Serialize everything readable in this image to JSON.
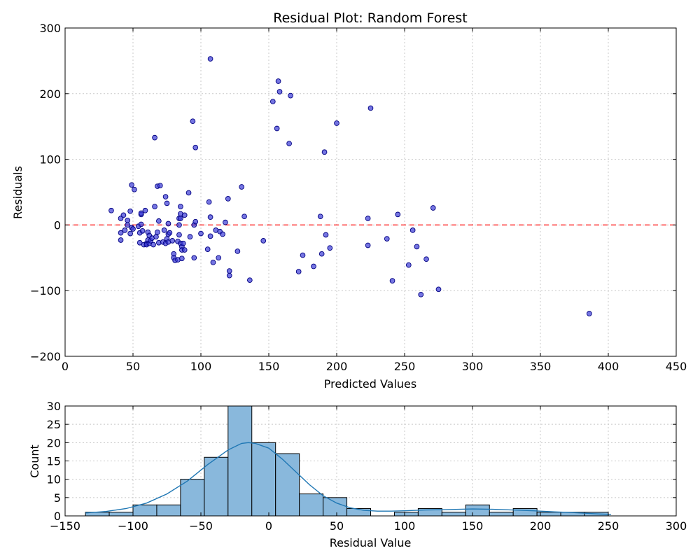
{
  "chart_data": [
    {
      "type": "scatter",
      "title": "Residual Plot: Random Forest",
      "xlabel": "Predicted Values",
      "ylabel": "Residuals",
      "xlim": [
        0,
        450
      ],
      "ylim": [
        -200,
        300
      ],
      "xticks": [
        0,
        50,
        100,
        150,
        200,
        250,
        300,
        350,
        400,
        450
      ],
      "yticks": [
        -200,
        -100,
        0,
        100,
        200,
        300
      ],
      "grid": true,
      "point_color": "#3b3bd6",
      "point_edge_color": "#000080",
      "reference_line": {
        "y": 0,
        "color": "#ff0000",
        "style": "dashed"
      },
      "points": [
        [
          34,
          22
        ],
        [
          41,
          10
        ],
        [
          41,
          -12
        ],
        [
          41,
          -23
        ],
        [
          43,
          15
        ],
        [
          44,
          -8
        ],
        [
          46,
          7
        ],
        [
          46,
          0
        ],
        [
          48,
          21
        ],
        [
          49,
          -4
        ],
        [
          48,
          -13
        ],
        [
          49,
          61
        ],
        [
          50,
          -6
        ],
        [
          51,
          54
        ],
        [
          54,
          -2
        ],
        [
          55,
          -12
        ],
        [
          55,
          -27
        ],
        [
          56,
          1
        ],
        [
          56,
          16
        ],
        [
          56,
          18
        ],
        [
          57,
          -9
        ],
        [
          58,
          -30
        ],
        [
          59,
          22
        ],
        [
          60,
          -28
        ],
        [
          60,
          -30
        ],
        [
          61,
          -11
        ],
        [
          61,
          -23
        ],
        [
          62,
          -16
        ],
        [
          62,
          -28
        ],
        [
          63,
          -24
        ],
        [
          64,
          -20
        ],
        [
          65,
          -30
        ],
        [
          66,
          133
        ],
        [
          66,
          28
        ],
        [
          67,
          -18
        ],
        [
          68,
          -11
        ],
        [
          68,
          59
        ],
        [
          69,
          -27
        ],
        [
          69,
          6
        ],
        [
          70,
          60
        ],
        [
          72,
          -26
        ],
        [
          73,
          -8
        ],
        [
          74,
          -28
        ],
        [
          74,
          43
        ],
        [
          75,
          -21
        ],
        [
          75,
          33
        ],
        [
          76,
          -14
        ],
        [
          76,
          -26
        ],
        [
          76,
          2
        ],
        [
          77,
          -12
        ],
        [
          79,
          -24
        ],
        [
          80,
          -44
        ],
        [
          80,
          -50
        ],
        [
          81,
          -54
        ],
        [
          83,
          -53
        ],
        [
          83,
          -25
        ],
        [
          84,
          0
        ],
        [
          84,
          -15
        ],
        [
          84,
          10
        ],
        [
          85,
          17
        ],
        [
          85,
          28
        ],
        [
          85,
          10
        ],
        [
          85,
          -28
        ],
        [
          86,
          -33
        ],
        [
          86,
          -38
        ],
        [
          86,
          -51
        ],
        [
          87,
          -28
        ],
        [
          88,
          -38
        ],
        [
          88,
          15
        ],
        [
          91,
          49
        ],
        [
          92,
          -18
        ],
        [
          94,
          158
        ],
        [
          95,
          -50
        ],
        [
          95,
          0
        ],
        [
          96,
          5
        ],
        [
          96,
          118
        ],
        [
          100,
          -13
        ],
        [
          105,
          -37
        ],
        [
          106,
          35
        ],
        [
          107,
          -17
        ],
        [
          107,
          12
        ],
        [
          107,
          253
        ],
        [
          109,
          -57
        ],
        [
          111,
          -8
        ],
        [
          113,
          -50
        ],
        [
          114,
          -10
        ],
        [
          116,
          -14
        ],
        [
          118,
          4
        ],
        [
          120,
          40
        ],
        [
          121,
          -77
        ],
        [
          121,
          -70
        ],
        [
          127,
          -40
        ],
        [
          130,
          58
        ],
        [
          132,
          13
        ],
        [
          136,
          -84
        ],
        [
          146,
          -24
        ],
        [
          153,
          188
        ],
        [
          156,
          147
        ],
        [
          157,
          219
        ],
        [
          158,
          203
        ],
        [
          165,
          124
        ],
        [
          166,
          197
        ],
        [
          172,
          -71
        ],
        [
          175,
          -46
        ],
        [
          183,
          -63
        ],
        [
          188,
          13
        ],
        [
          189,
          -44
        ],
        [
          191,
          111
        ],
        [
          192,
          -15
        ],
        [
          195,
          -35
        ],
        [
          200,
          155
        ],
        [
          223,
          10
        ],
        [
          223,
          -31
        ],
        [
          225,
          178
        ],
        [
          237,
          -21
        ],
        [
          241,
          -85
        ],
        [
          245,
          16
        ],
        [
          253,
          -61
        ],
        [
          256,
          -8
        ],
        [
          259,
          -33
        ],
        [
          262,
          -106
        ],
        [
          266,
          -52
        ],
        [
          271,
          26
        ],
        [
          275,
          -98
        ],
        [
          386,
          -135
        ]
      ]
    },
    {
      "type": "bar",
      "subtype": "histogram",
      "xlabel": "Residual Value",
      "ylabel": "Count",
      "xlim": [
        -150,
        300
      ],
      "ylim": [
        0,
        30
      ],
      "xticks": [
        -150,
        -100,
        -50,
        0,
        50,
        100,
        150,
        200,
        250,
        300
      ],
      "yticks": [
        0,
        5,
        10,
        15,
        20,
        25,
        30
      ],
      "grid": true,
      "bar_color": "#89b8dc",
      "kde_color": "#1f77b4",
      "bins": [
        {
          "start": -135,
          "end": -117.5,
          "count": 1
        },
        {
          "start": -117.5,
          "end": -100,
          "count": 1
        },
        {
          "start": -100,
          "end": -82.5,
          "count": 3
        },
        {
          "start": -82.5,
          "end": -65,
          "count": 3
        },
        {
          "start": -65,
          "end": -47.5,
          "count": 10
        },
        {
          "start": -47.5,
          "end": -30,
          "count": 16
        },
        {
          "start": -30,
          "end": -12.5,
          "count": 30
        },
        {
          "start": -12.5,
          "end": 5,
          "count": 20
        },
        {
          "start": 5,
          "end": 22.5,
          "count": 17
        },
        {
          "start": 22.5,
          "end": 40,
          "count": 6
        },
        {
          "start": 40,
          "end": 57.5,
          "count": 5
        },
        {
          "start": 57.5,
          "end": 75,
          "count": 2
        },
        {
          "start": 75,
          "end": 92.5,
          "count": 0
        },
        {
          "start": 92.5,
          "end": 110,
          "count": 1
        },
        {
          "start": 110,
          "end": 127.5,
          "count": 2
        },
        {
          "start": 127.5,
          "end": 145,
          "count": 1
        },
        {
          "start": 145,
          "end": 162.5,
          "count": 3
        },
        {
          "start": 162.5,
          "end": 180,
          "count": 1
        },
        {
          "start": 180,
          "end": 197.5,
          "count": 2
        },
        {
          "start": 197.5,
          "end": 215,
          "count": 1
        },
        {
          "start": 215,
          "end": 232.5,
          "count": 1
        },
        {
          "start": 232.5,
          "end": 250,
          "count": 1
        }
      ],
      "kde": [
        [
          -135,
          0.8
        ],
        [
          -120,
          1.2
        ],
        [
          -105,
          2.0
        ],
        [
          -90,
          3.5
        ],
        [
          -75,
          6.0
        ],
        [
          -60,
          9.5
        ],
        [
          -45,
          14.0
        ],
        [
          -30,
          18.0
        ],
        [
          -20,
          19.8
        ],
        [
          -15,
          20.0
        ],
        [
          -10,
          19.8
        ],
        [
          0,
          18.5
        ],
        [
          10,
          15.5
        ],
        [
          20,
          12.0
        ],
        [
          30,
          8.5
        ],
        [
          40,
          5.5
        ],
        [
          50,
          3.5
        ],
        [
          60,
          2.2
        ],
        [
          70,
          1.5
        ],
        [
          80,
          1.3
        ],
        [
          90,
          1.3
        ],
        [
          100,
          1.4
        ],
        [
          115,
          1.6
        ],
        [
          130,
          1.7
        ],
        [
          150,
          1.9
        ],
        [
          165,
          1.8
        ],
        [
          180,
          1.6
        ],
        [
          195,
          1.4
        ],
        [
          210,
          1.1
        ],
        [
          225,
          0.9
        ],
        [
          240,
          0.6
        ],
        [
          252,
          0.4
        ]
      ]
    }
  ]
}
